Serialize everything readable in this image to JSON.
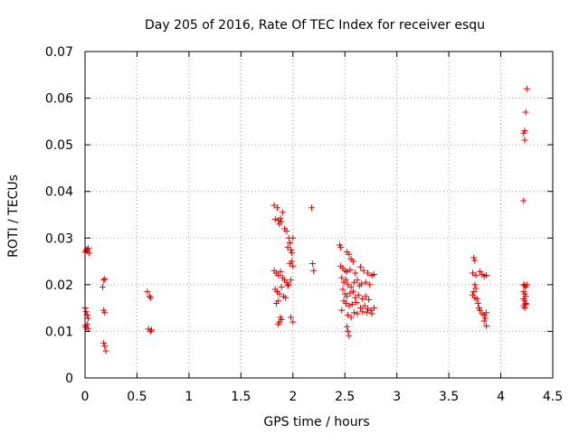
{
  "chart_data": {
    "type": "scatter",
    "title": "Day 205 of 2016, Rate Of TEC Index for receiver esqu",
    "xlabel": "GPS time / hours",
    "ylabel": "ROTI / TECUs",
    "xlim": [
      0,
      4.5
    ],
    "ylim": [
      0,
      0.07
    ],
    "xticks": [
      0,
      0.5,
      1,
      1.5,
      2,
      2.5,
      3,
      3.5,
      4,
      4.5
    ],
    "xtick_labels": [
      "0",
      "0.5",
      "1",
      "1.5",
      "2",
      "2.5",
      "3",
      "3.5",
      "4",
      "4.5"
    ],
    "yticks": [
      0,
      0.01,
      0.02,
      0.03,
      0.04,
      0.05,
      0.06,
      0.07
    ],
    "ytick_labels": [
      "0",
      "0.01",
      "0.02",
      "0.03",
      "0.04",
      "0.05",
      "0.06",
      "0.07"
    ],
    "grid": true,
    "marker": "+",
    "color": "#e00000",
    "series": [
      {
        "name": "ROTI",
        "points": [
          [
            0.0,
            0.027
          ],
          [
            0.01,
            0.0275
          ],
          [
            0.02,
            0.0272
          ],
          [
            0.03,
            0.0278
          ],
          [
            0.04,
            0.0268
          ],
          [
            0.02,
            0.0274
          ],
          [
            0.0,
            0.015
          ],
          [
            0.01,
            0.0142
          ],
          [
            0.02,
            0.0135
          ],
          [
            0.03,
            0.0128
          ],
          [
            0.02,
            0.0115
          ],
          [
            0.01,
            0.0108
          ],
          [
            0.03,
            0.0105
          ],
          [
            0.0,
            0.0112
          ],
          [
            0.18,
            0.021
          ],
          [
            0.19,
            0.0212
          ],
          [
            0.17,
            0.0195
          ],
          [
            0.18,
            0.0145
          ],
          [
            0.19,
            0.014
          ],
          [
            0.18,
            0.0075
          ],
          [
            0.19,
            0.0068
          ],
          [
            0.2,
            0.0058
          ],
          [
            0.6,
            0.0185
          ],
          [
            0.62,
            0.0175
          ],
          [
            0.63,
            0.0172
          ],
          [
            0.61,
            0.0105
          ],
          [
            0.63,
            0.01
          ],
          [
            0.64,
            0.0103
          ],
          [
            1.82,
            0.037
          ],
          [
            1.85,
            0.0365
          ],
          [
            1.83,
            0.034
          ],
          [
            1.86,
            0.0338
          ],
          [
            1.88,
            0.0342
          ],
          [
            1.9,
            0.0355
          ],
          [
            1.87,
            0.033
          ],
          [
            1.89,
            0.0335
          ],
          [
            1.92,
            0.032
          ],
          [
            1.94,
            0.0315
          ],
          [
            1.96,
            0.03
          ],
          [
            1.97,
            0.029
          ],
          [
            1.95,
            0.028
          ],
          [
            1.98,
            0.0275
          ],
          [
            2.0,
            0.03
          ],
          [
            1.99,
            0.0268
          ],
          [
            1.82,
            0.023
          ],
          [
            1.84,
            0.0225
          ],
          [
            1.86,
            0.022
          ],
          [
            1.88,
            0.0228
          ],
          [
            1.9,
            0.0215
          ],
          [
            1.92,
            0.021
          ],
          [
            1.94,
            0.0205
          ],
          [
            1.96,
            0.02
          ],
          [
            1.98,
            0.021
          ],
          [
            2.0,
            0.024
          ],
          [
            1.83,
            0.019
          ],
          [
            1.85,
            0.0185
          ],
          [
            1.87,
            0.018
          ],
          [
            1.89,
            0.0195
          ],
          [
            1.91,
            0.0175
          ],
          [
            1.93,
            0.0172
          ],
          [
            1.95,
            0.0198
          ],
          [
            1.97,
            0.0245
          ],
          [
            1.99,
            0.025
          ],
          [
            1.84,
            0.016
          ],
          [
            1.86,
            0.0165
          ],
          [
            1.88,
            0.013
          ],
          [
            1.87,
            0.012
          ],
          [
            1.86,
            0.0115
          ],
          [
            1.89,
            0.0125
          ],
          [
            1.98,
            0.013
          ],
          [
            2.0,
            0.012
          ],
          [
            2.18,
            0.0365
          ],
          [
            2.19,
            0.0245
          ],
          [
            2.2,
            0.023
          ],
          [
            2.45,
            0.0285
          ],
          [
            2.46,
            0.028
          ],
          [
            2.52,
            0.027
          ],
          [
            2.54,
            0.0265
          ],
          [
            2.56,
            0.0255
          ],
          [
            2.58,
            0.025
          ],
          [
            2.46,
            0.024
          ],
          [
            2.48,
            0.0235
          ],
          [
            2.5,
            0.023
          ],
          [
            2.52,
            0.0228
          ],
          [
            2.55,
            0.0232
          ],
          [
            2.6,
            0.0225
          ],
          [
            2.65,
            0.0238
          ],
          [
            2.68,
            0.023
          ],
          [
            2.72,
            0.0225
          ],
          [
            2.76,
            0.022
          ],
          [
            2.78,
            0.0222
          ],
          [
            2.47,
            0.0215
          ],
          [
            2.49,
            0.0205
          ],
          [
            2.51,
            0.021
          ],
          [
            2.53,
            0.02
          ],
          [
            2.56,
            0.0195
          ],
          [
            2.59,
            0.0205
          ],
          [
            2.62,
            0.021
          ],
          [
            2.64,
            0.0198
          ],
          [
            2.66,
            0.0202
          ],
          [
            2.7,
            0.0205
          ],
          [
            2.74,
            0.02
          ],
          [
            2.48,
            0.019
          ],
          [
            2.5,
            0.018
          ],
          [
            2.52,
            0.0175
          ],
          [
            2.55,
            0.0182
          ],
          [
            2.58,
            0.0185
          ],
          [
            2.6,
            0.0172
          ],
          [
            2.63,
            0.0178
          ],
          [
            2.67,
            0.017
          ],
          [
            2.7,
            0.0175
          ],
          [
            2.73,
            0.0168
          ],
          [
            2.49,
            0.0165
          ],
          [
            2.51,
            0.016
          ],
          [
            2.54,
            0.0155
          ],
          [
            2.57,
            0.0158
          ],
          [
            2.61,
            0.0162
          ],
          [
            2.65,
            0.015
          ],
          [
            2.69,
            0.0155
          ],
          [
            2.72,
            0.0148
          ],
          [
            2.75,
            0.0145
          ],
          [
            2.78,
            0.015
          ],
          [
            2.47,
            0.0145
          ],
          [
            2.53,
            0.0135
          ],
          [
            2.56,
            0.013
          ],
          [
            2.59,
            0.014
          ],
          [
            2.62,
            0.0138
          ],
          [
            2.67,
            0.0142
          ],
          [
            2.71,
            0.014
          ],
          [
            2.76,
            0.0138
          ],
          [
            2.52,
            0.011
          ],
          [
            2.53,
            0.01
          ],
          [
            2.54,
            0.009
          ],
          [
            3.74,
            0.0258
          ],
          [
            3.75,
            0.0252
          ],
          [
            3.73,
            0.0225
          ],
          [
            3.76,
            0.022
          ],
          [
            3.8,
            0.0228
          ],
          [
            3.82,
            0.0222
          ],
          [
            3.84,
            0.0218
          ],
          [
            3.86,
            0.022
          ],
          [
            3.75,
            0.02
          ],
          [
            3.76,
            0.0192
          ],
          [
            3.74,
            0.0185
          ],
          [
            3.73,
            0.0178
          ],
          [
            3.75,
            0.0172
          ],
          [
            3.77,
            0.017
          ],
          [
            3.78,
            0.016
          ],
          [
            3.79,
            0.015
          ],
          [
            3.8,
            0.0145
          ],
          [
            3.82,
            0.0138
          ],
          [
            3.84,
            0.0135
          ],
          [
            3.86,
            0.014
          ],
          [
            3.85,
            0.0128
          ],
          [
            3.84,
            0.0122
          ],
          [
            3.86,
            0.0112
          ],
          [
            4.22,
            0.038
          ],
          [
            4.23,
            0.053
          ],
          [
            4.22,
            0.0525
          ],
          [
            4.23,
            0.051
          ],
          [
            4.24,
            0.057
          ],
          [
            4.25,
            0.062
          ],
          [
            4.22,
            0.02
          ],
          [
            4.23,
            0.0198
          ],
          [
            4.24,
            0.0195
          ],
          [
            4.25,
            0.02
          ],
          [
            4.22,
            0.0185
          ],
          [
            4.23,
            0.018
          ],
          [
            4.24,
            0.0175
          ],
          [
            4.22,
            0.017
          ],
          [
            4.23,
            0.0165
          ],
          [
            4.24,
            0.016
          ],
          [
            4.22,
            0.0155
          ],
          [
            4.23,
            0.015
          ],
          [
            4.24,
            0.0158
          ]
        ]
      }
    ]
  }
}
